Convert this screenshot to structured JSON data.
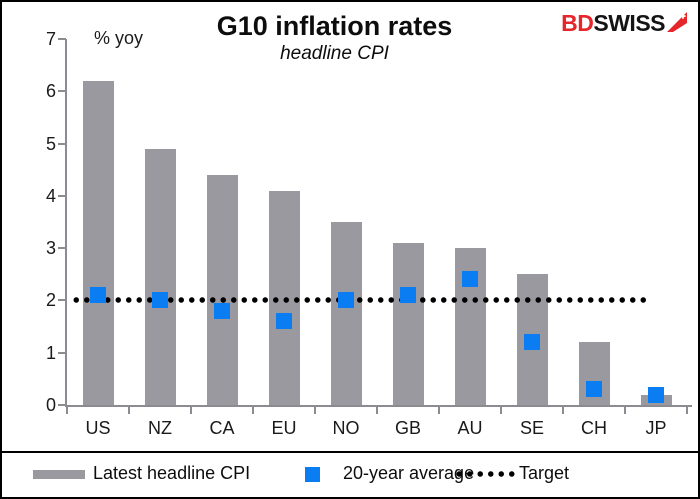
{
  "header": {
    "title": "G10 inflation rates",
    "subtitle": "headline CPI",
    "unit_label": "% yoy",
    "logo": {
      "part1": "BD",
      "part2": "SWISS",
      "part1_color": "#e5262b",
      "part2_color": "#141414",
      "icon": "swiss-flag-arrow-icon"
    }
  },
  "chart_data": {
    "type": "bar",
    "title": "G10 inflation rates",
    "subtitle": "headline CPI",
    "ylabel": "% yoy",
    "xlabel": "",
    "ylim": [
      0,
      7
    ],
    "yticks": [
      0,
      1,
      2,
      3,
      4,
      5,
      6,
      7
    ],
    "grid": false,
    "legend_position": "bottom",
    "categories": [
      "US",
      "NZ",
      "CA",
      "EU",
      "NO",
      "GB",
      "AU",
      "SE",
      "CH",
      "JP"
    ],
    "series": [
      {
        "name": "Latest headline CPI",
        "type": "bar",
        "color": "#9a99a0",
        "values": [
          6.2,
          4.9,
          4.4,
          4.1,
          3.5,
          3.1,
          3.0,
          2.5,
          1.2,
          0.2
        ]
      },
      {
        "name": "20-year average",
        "type": "square-marker",
        "color": "#0b7df3",
        "values": [
          2.1,
          2.0,
          1.8,
          1.6,
          2.0,
          2.1,
          2.4,
          1.2,
          0.3,
          0.2
        ]
      },
      {
        "name": "Target",
        "type": "dotted-line",
        "color": "#000000",
        "value": 2.0
      }
    ]
  },
  "legend": {
    "items": [
      {
        "label": "Latest headline CPI",
        "swatch": "bar-swatch",
        "color": "#9a99a0"
      },
      {
        "label": "20-year average",
        "swatch": "square-swatch",
        "color": "#0b7df3"
      },
      {
        "label": "Target",
        "swatch": "dotted-line-swatch",
        "color": "#000000"
      }
    ]
  }
}
